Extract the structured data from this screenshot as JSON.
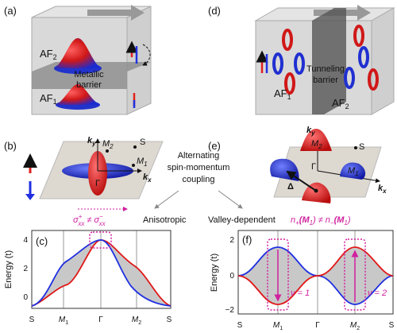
{
  "panel_a": {
    "label": "(a)",
    "af_top": {
      "base": "AF",
      "sub": "2"
    },
    "barrier": [
      "Metallic",
      "barrier"
    ],
    "af_bottom": {
      "base": "AF",
      "sub": "1"
    }
  },
  "panel_d": {
    "label": "(d)",
    "barrier": [
      "Tunneling",
      "barrier"
    ],
    "af_left": {
      "base": "AF",
      "sub": "1"
    },
    "af_right": {
      "base": "AF",
      "sub": "2"
    }
  },
  "panel_b": {
    "label": "(b)",
    "ky": {
      "base": "k",
      "sub": "y"
    },
    "m2": {
      "base": "M",
      "sub": "2"
    },
    "s": "S",
    "m1": {
      "base": "M",
      "sub": "1"
    },
    "kx": {
      "base": "k",
      "sub": "x"
    },
    "gamma": "Γ",
    "sigma_plus": {
      "base": "σ",
      "sup": "+",
      "sub": "xx"
    },
    "relation": "≠",
    "sigma_minus": {
      "base": "σ",
      "sup": "−",
      "sub": "xx"
    },
    "caption": "Anisotropic"
  },
  "center": {
    "lines": [
      "Alternating",
      "spin-momentum",
      "coupling"
    ]
  },
  "panel_e": {
    "label": "(e)",
    "ky": {
      "base": "k",
      "sub": "y"
    },
    "m2": {
      "base": "M",
      "sub": "2"
    },
    "s": "S",
    "m1": {
      "base": "M",
      "sub": "1"
    },
    "kx": {
      "base": "k",
      "sub": "x"
    },
    "gamma": "Γ",
    "delta": "Δ",
    "caption": "Valley-dependent",
    "n_plus": {
      "base": "n",
      "sub": "+",
      "arg": "(M",
      "argsub": "1",
      "close": ")"
    },
    "relation": "≠",
    "n_minus": {
      "base": "n",
      "sub": "−",
      "arg": "(M",
      "argsub": "1",
      "close": ")"
    }
  },
  "panel_c": {
    "label": "(c)",
    "y_label": "Energy (t)",
    "yticks": [
      "4",
      "2",
      "0"
    ],
    "xticks": [
      {
        "base": "S"
      },
      {
        "base": "M",
        "sub": "1"
      },
      {
        "base": "Γ"
      },
      {
        "base": "M",
        "sub": "2"
      },
      {
        "base": "S"
      }
    ]
  },
  "panel_f": {
    "label": "(f)",
    "y_label": "Energy (t)",
    "yticks": [
      "2",
      "0",
      "−2"
    ],
    "xticks": [
      {
        "base": "S"
      },
      {
        "base": "M",
        "sub": "1"
      },
      {
        "base": "Γ"
      },
      {
        "base": "M",
        "sub": "2"
      },
      {
        "base": "S"
      }
    ],
    "nu1": "ν = 1",
    "nu2": "ν = 2"
  }
}
